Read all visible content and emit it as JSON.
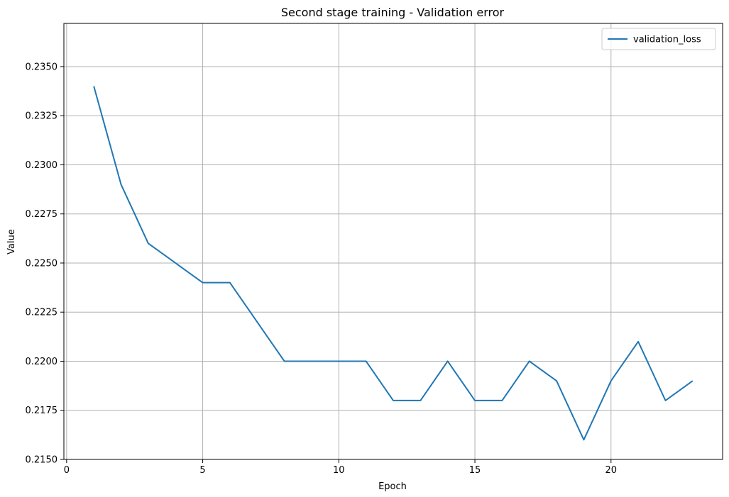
{
  "chart_data": {
    "type": "line",
    "title": "Second stage training - Validation error",
    "xlabel": "Epoch",
    "ylabel": "Value",
    "xlim": [
      -0.1,
      24.1
    ],
    "ylim": [
      0.215,
      0.2372
    ],
    "xticks": [
      0,
      5,
      10,
      15,
      20
    ],
    "xtick_labels": [
      "0",
      "5",
      "10",
      "15",
      "20"
    ],
    "yticks": [
      0.215,
      0.2175,
      0.22,
      0.2225,
      0.225,
      0.2275,
      0.23,
      0.2325,
      0.235
    ],
    "ytick_labels": [
      "0.2150",
      "0.2175",
      "0.2200",
      "0.2225",
      "0.2250",
      "0.2275",
      "0.2300",
      "0.2325",
      "0.2350"
    ],
    "grid": true,
    "legend_position": "top-right",
    "series": [
      {
        "name": "validation_loss",
        "color": "#1f77b4",
        "x": [
          1,
          2,
          3,
          4,
          5,
          6,
          7,
          8,
          9,
          10,
          11,
          12,
          13,
          14,
          15,
          16,
          17,
          18,
          19,
          20,
          21,
          22,
          23
        ],
        "y": [
          0.234,
          0.229,
          0.226,
          0.225,
          0.224,
          0.224,
          0.222,
          0.22,
          0.22,
          0.22,
          0.22,
          0.218,
          0.218,
          0.22,
          0.218,
          0.218,
          0.22,
          0.219,
          0.216,
          0.219,
          0.221,
          0.218,
          0.219
        ]
      }
    ]
  }
}
